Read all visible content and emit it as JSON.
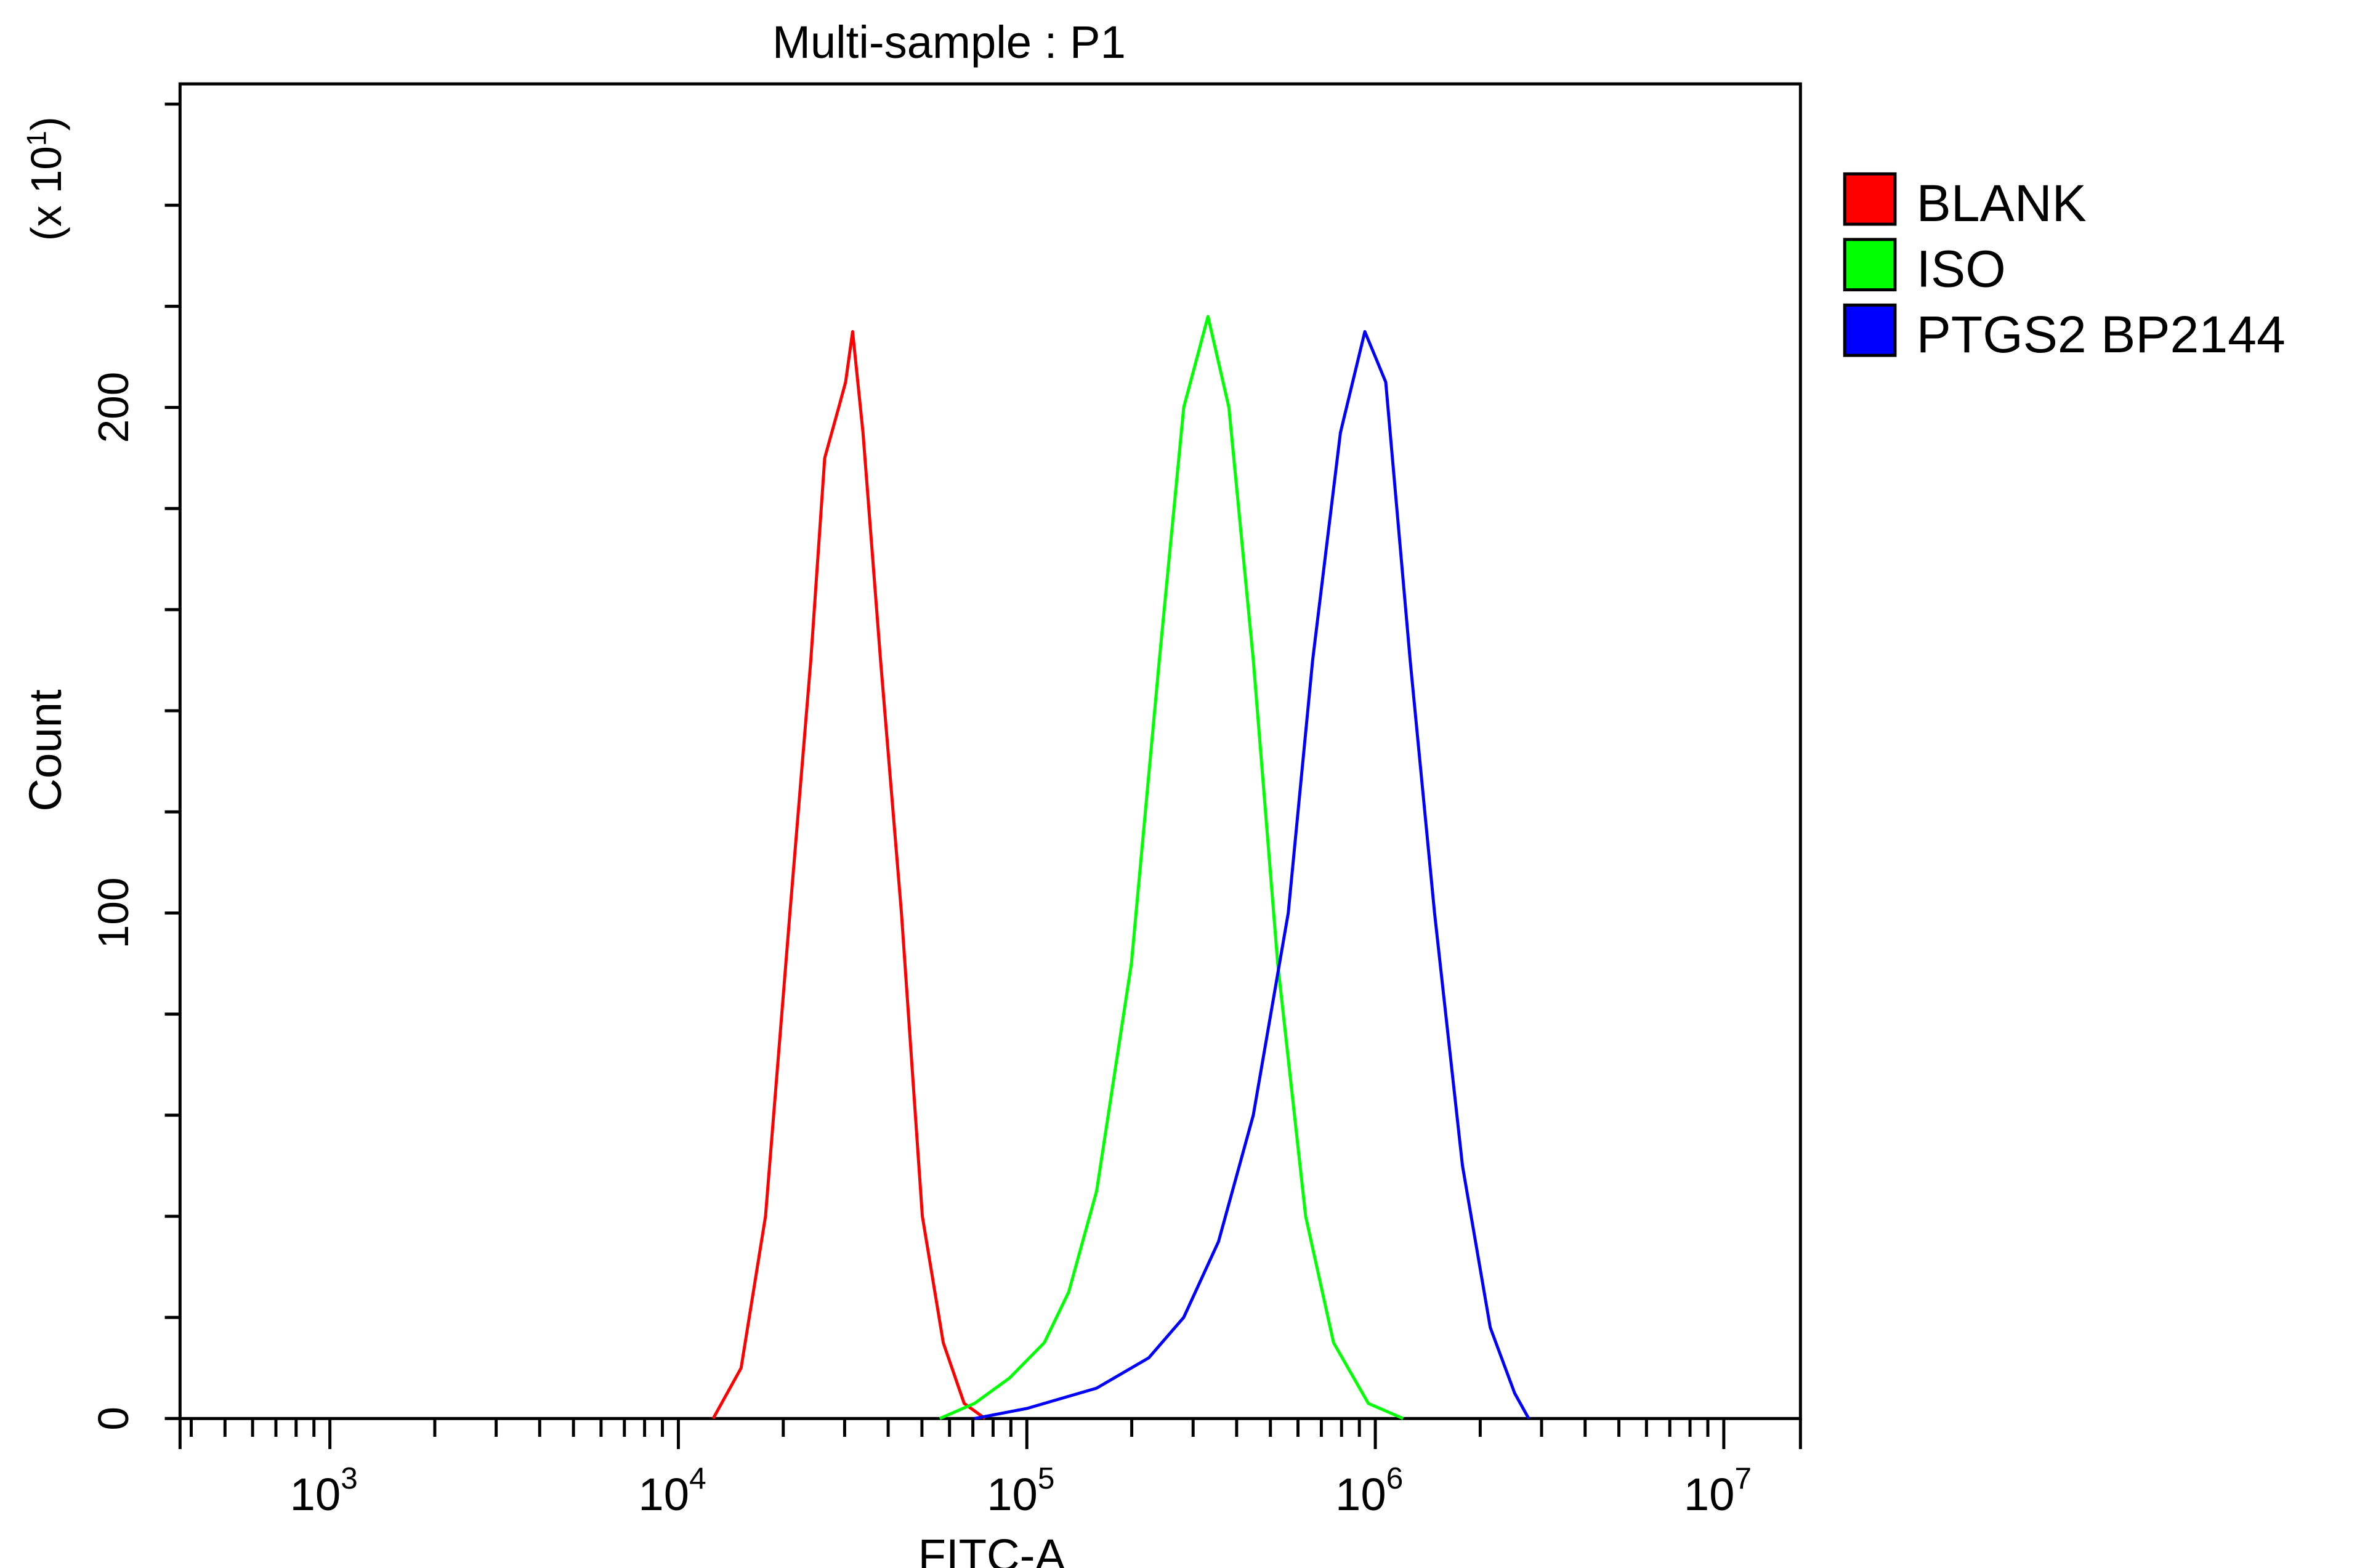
{
  "chart_data": {
    "type": "line",
    "title": "Multi-sample : P1",
    "xlabel": "FITC-A",
    "ylabel": "Count",
    "y_multiplier_label": "(x 10",
    "y_multiplier_exp": "1",
    "x_scale": "log10",
    "xlim_log10": [
      2.57,
      7.22
    ],
    "ylim": [
      0,
      264
    ],
    "x_major_ticks": [
      {
        "base": "10",
        "exp": "3",
        "log": 3
      },
      {
        "base": "10",
        "exp": "4",
        "log": 4
      },
      {
        "base": "10",
        "exp": "5",
        "log": 5
      },
      {
        "base": "10",
        "exp": "6",
        "log": 6
      },
      {
        "base": "10",
        "exp": "7",
        "log": 7
      }
    ],
    "y_tick_labels": [
      {
        "label": "0",
        "value": 0
      },
      {
        "label": "100",
        "value": 100
      },
      {
        "label": "200",
        "value": 200
      }
    ],
    "y_minor_step": 20,
    "grid": false,
    "legend_position": "right",
    "series": [
      {
        "name": "BLANK",
        "color": "#ff0000",
        "x_log10": [
          4.1,
          4.18,
          4.25,
          4.32,
          4.38,
          4.42,
          4.46,
          4.48,
          4.5,
          4.53,
          4.58,
          4.64,
          4.7,
          4.76,
          4.82,
          4.88
        ],
        "y": [
          0,
          10,
          40,
          100,
          150,
          190,
          200,
          205,
          215,
          195,
          150,
          100,
          40,
          15,
          3,
          0
        ]
      },
      {
        "name": "ISO",
        "color": "#00ff00",
        "x_log10": [
          4.75,
          4.85,
          4.95,
          5.05,
          5.12,
          5.2,
          5.3,
          5.38,
          5.45,
          5.52,
          5.58,
          5.65,
          5.72,
          5.8,
          5.88,
          5.98,
          6.08
        ],
        "y": [
          0,
          3,
          8,
          15,
          25,
          45,
          90,
          150,
          200,
          218,
          200,
          150,
          90,
          40,
          15,
          3,
          0
        ]
      },
      {
        "name": "PTGS2 BP2144",
        "color": "#0000ff",
        "x_log10": [
          4.85,
          5.0,
          5.2,
          5.35,
          5.45,
          5.55,
          5.65,
          5.75,
          5.82,
          5.9,
          5.97,
          6.0,
          6.03,
          6.1,
          6.17,
          6.25,
          6.33,
          6.4,
          6.44
        ],
        "y": [
          0,
          2,
          6,
          12,
          20,
          35,
          60,
          100,
          150,
          195,
          215,
          210,
          205,
          150,
          100,
          50,
          18,
          5,
          0
        ]
      }
    ]
  }
}
